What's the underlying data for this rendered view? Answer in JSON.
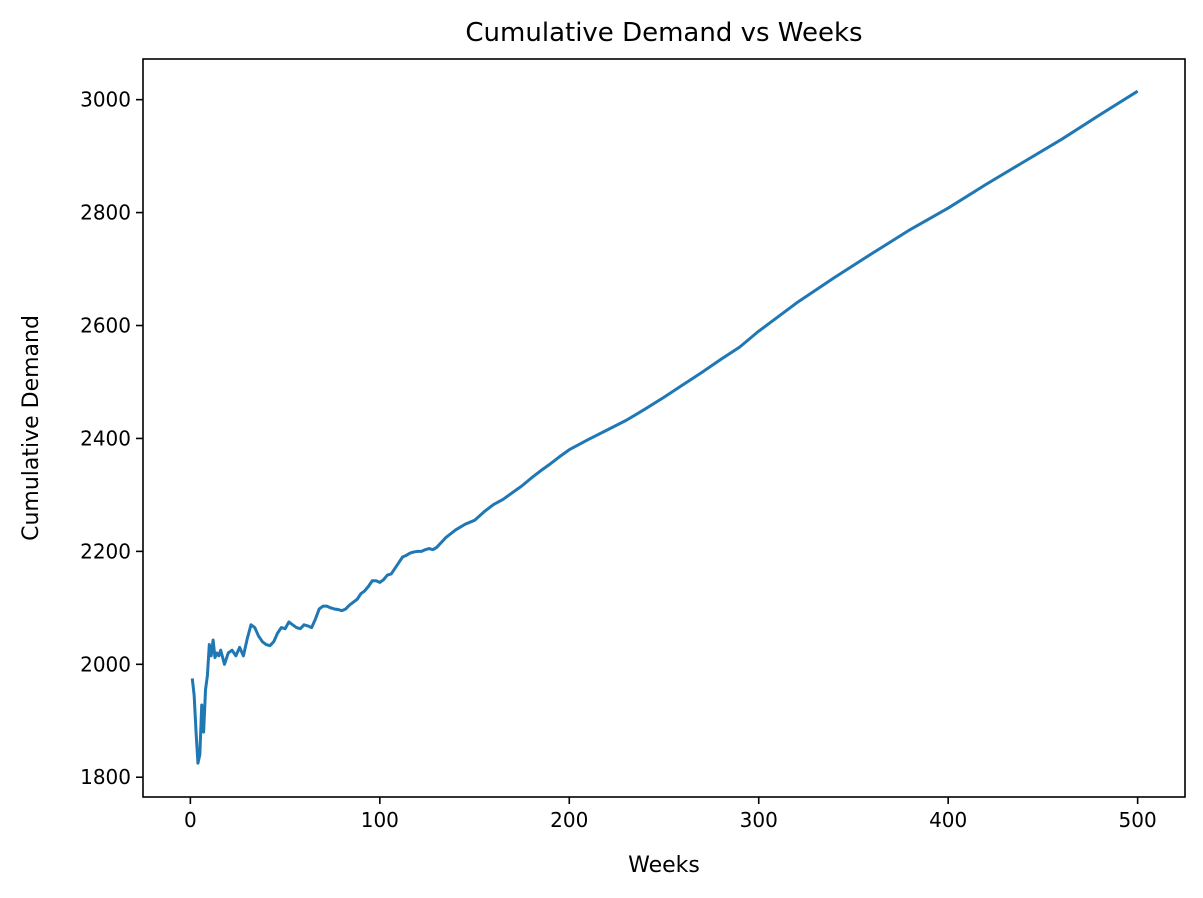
{
  "chart_data": {
    "type": "line",
    "title": "Cumulative Demand vs Weeks",
    "xlabel": "Weeks",
    "ylabel": "Cumulative Demand",
    "xlim": [
      -25,
      525
    ],
    "ylim": [
      1765,
      3072
    ],
    "xticks": [
      0,
      100,
      200,
      300,
      400,
      500
    ],
    "yticks": [
      1800,
      2000,
      2200,
      2400,
      2600,
      2800,
      3000
    ],
    "xtick_labels": [
      "0",
      "100",
      "200",
      "300",
      "400",
      "500"
    ],
    "ytick_labels": [
      "1800",
      "2000",
      "2200",
      "2400",
      "2600",
      "2800",
      "3000"
    ],
    "grid": false,
    "color": "#1f77b4",
    "series": [
      {
        "x": [
          1,
          2,
          3,
          4,
          5,
          6,
          7,
          8,
          9,
          10,
          11,
          12,
          13,
          14,
          15,
          16,
          18,
          20,
          22,
          24,
          26,
          28,
          30,
          32,
          34,
          36,
          38,
          40,
          42,
          44,
          46,
          48,
          50,
          52,
          54,
          56,
          58,
          60,
          62,
          64,
          66,
          68,
          70,
          72,
          74,
          76,
          78,
          80,
          82,
          84,
          86,
          88,
          90,
          92,
          94,
          96,
          98,
          100,
          102,
          104,
          106,
          108,
          110,
          112,
          114,
          116,
          118,
          120,
          122,
          124,
          126,
          128,
          130,
          135,
          140,
          145,
          150,
          155,
          160,
          165,
          170,
          175,
          180,
          185,
          190,
          195,
          200,
          210,
          220,
          230,
          240,
          250,
          260,
          270,
          280,
          290,
          300,
          320,
          340,
          360,
          380,
          400,
          420,
          440,
          460,
          480,
          500
        ],
        "y": [
          1975,
          1945,
          1880,
          1825,
          1840,
          1928,
          1880,
          1955,
          1980,
          2035,
          2015,
          2043,
          2012,
          2020,
          2015,
          2025,
          2000,
          2020,
          2025,
          2015,
          2030,
          2015,
          2045,
          2070,
          2065,
          2050,
          2040,
          2035,
          2033,
          2040,
          2055,
          2065,
          2063,
          2075,
          2070,
          2065,
          2063,
          2070,
          2068,
          2065,
          2080,
          2098,
          2103,
          2103,
          2100,
          2098,
          2097,
          2095,
          2098,
          2105,
          2110,
          2115,
          2125,
          2130,
          2138,
          2148,
          2148,
          2145,
          2150,
          2158,
          2160,
          2170,
          2180,
          2190,
          2193,
          2197,
          2199,
          2200,
          2200,
          2203,
          2205,
          2203,
          2207,
          2225,
          2238,
          2248,
          2255,
          2270,
          2283,
          2292,
          2304,
          2316,
          2330,
          2343,
          2355,
          2368,
          2380,
          2398,
          2415,
          2432,
          2452,
          2473,
          2495,
          2517,
          2540,
          2562,
          2590,
          2640,
          2685,
          2728,
          2770,
          2808,
          2850,
          2890,
          2930,
          2973,
          3015
        ]
      }
    ]
  }
}
